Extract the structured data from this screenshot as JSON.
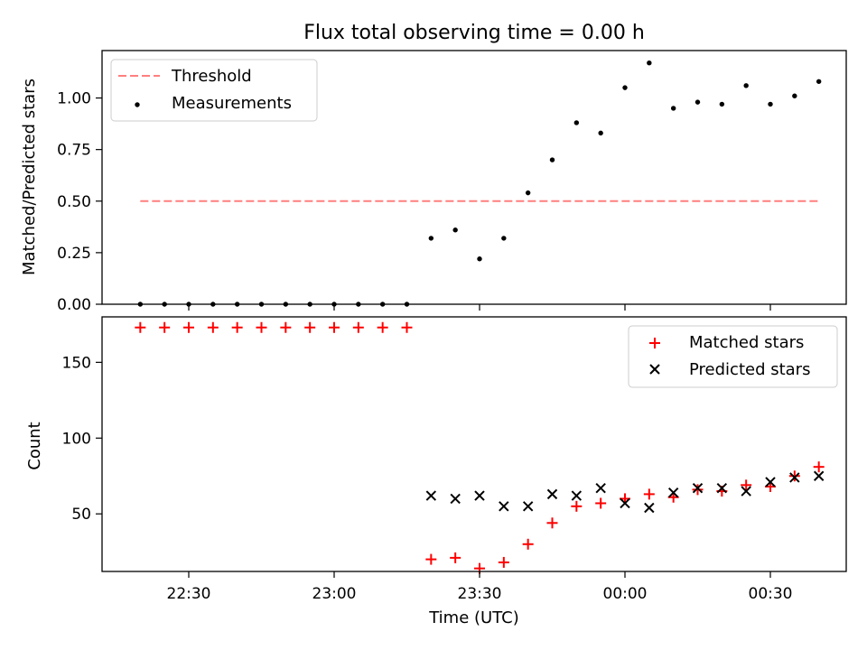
{
  "title": "Flux total observing time = 0.00 h",
  "chart_data": [
    {
      "type": "scatter",
      "title": "Flux total observing time = 0.00 h",
      "ylabel": "Matched/Predicted stars",
      "xlabel": "",
      "x_ticks": [
        "22:30",
        "23:00",
        "23:30",
        "00:00",
        "00:30"
      ],
      "x_tick_labels_shown": false,
      "y_ticks": [
        "0.00",
        "0.25",
        "0.50",
        "0.75",
        "1.00"
      ],
      "ylim": [
        0.0,
        1.23
      ],
      "legend_position": "top-left",
      "threshold": {
        "name": "Threshold",
        "value": 0.5,
        "x_start": "22:20",
        "x_end": "00:40",
        "color": "#ff7f7f",
        "style": "dashed"
      },
      "series": [
        {
          "name": "Measurements",
          "marker": "dot",
          "color": "#000000",
          "x": [
            "22:20",
            "22:25",
            "22:30",
            "22:35",
            "22:40",
            "22:45",
            "22:50",
            "22:55",
            "23:00",
            "23:05",
            "23:10",
            "23:15",
            "23:20",
            "23:25",
            "23:30",
            "23:35",
            "23:40",
            "23:45",
            "23:50",
            "23:55",
            "00:00",
            "00:05",
            "00:10",
            "00:15",
            "00:20",
            "00:25",
            "00:30",
            "00:35",
            "00:40"
          ],
          "y": [
            0,
            0,
            0,
            0,
            0,
            0,
            0,
            0,
            0,
            0,
            0,
            0,
            0.32,
            0.36,
            0.22,
            0.32,
            0.54,
            0.7,
            0.88,
            0.83,
            1.05,
            1.17,
            0.95,
            0.98,
            0.97,
            1.06,
            0.97,
            1.01,
            1.08
          ]
        }
      ]
    },
    {
      "type": "scatter",
      "xlabel": "Time (UTC)",
      "ylabel": "Count",
      "x_ticks": [
        "22:30",
        "23:00",
        "23:30",
        "00:00",
        "00:30"
      ],
      "y_ticks": [
        "50",
        "100",
        "150"
      ],
      "ylim": [
        12,
        180
      ],
      "legend_position": "top-right",
      "series": [
        {
          "name": "Matched stars",
          "marker": "plus",
          "color": "#ff0000",
          "x": [
            "22:20",
            "22:25",
            "22:30",
            "22:35",
            "22:40",
            "22:45",
            "22:50",
            "22:55",
            "23:00",
            "23:05",
            "23:10",
            "23:15",
            "23:20",
            "23:25",
            "23:30",
            "23:35",
            "23:40",
            "23:45",
            "23:50",
            "23:55",
            "00:00",
            "00:05",
            "00:10",
            "00:15",
            "00:20",
            "00:25",
            "00:30",
            "00:35",
            "00:40"
          ],
          "y": [
            173,
            173,
            173,
            173,
            173,
            173,
            173,
            173,
            173,
            173,
            173,
            173,
            20,
            21,
            14,
            18,
            30,
            44,
            55,
            57,
            60,
            63,
            61,
            66,
            65,
            69,
            68,
            75,
            81
          ]
        },
        {
          "name": "Predicted stars",
          "marker": "x",
          "color": "#000000",
          "x": [
            "23:20",
            "23:25",
            "23:30",
            "23:35",
            "23:40",
            "23:45",
            "23:50",
            "23:55",
            "00:00",
            "00:05",
            "00:10",
            "00:15",
            "00:20",
            "00:25",
            "00:30",
            "00:35",
            "00:40"
          ],
          "y": [
            62,
            60,
            62,
            55,
            55,
            63,
            62,
            67,
            57,
            54,
            64,
            67,
            67,
            65,
            71,
            74,
            75
          ]
        }
      ]
    }
  ]
}
